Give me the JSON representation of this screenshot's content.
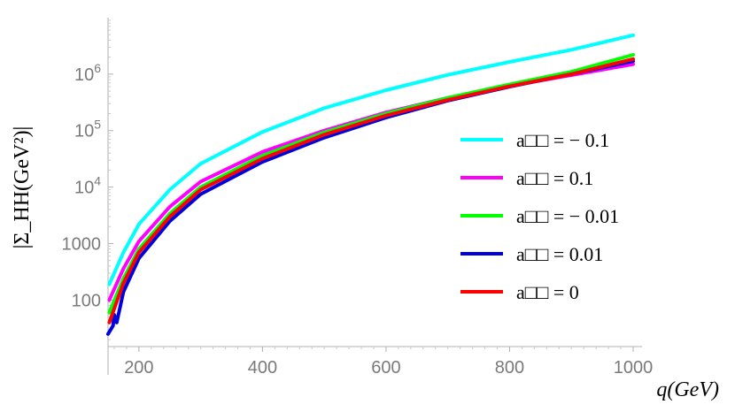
{
  "chart_data": {
    "type": "line",
    "xlabel": "q(GeV)",
    "ylabel": "|Σ_HH(GeV²)|",
    "xscale": "linear",
    "yscale": "log",
    "xlim": [
      150,
      1000
    ],
    "ylim": [
      15,
      10000000
    ],
    "x_ticks": [
      {
        "value": 200,
        "label": "200"
      },
      {
        "value": 400,
        "label": "400"
      },
      {
        "value": 600,
        "label": "600"
      },
      {
        "value": 800,
        "label": "800"
      },
      {
        "value": 1000,
        "label": "1000"
      }
    ],
    "y_ticks": [
      {
        "value": 100,
        "label": "100",
        "sup": ""
      },
      {
        "value": 1000,
        "label": "1000",
        "sup": ""
      },
      {
        "value": 10000,
        "label": "10",
        "sup": "4"
      },
      {
        "value": 100000,
        "label": "10",
        "sup": "5"
      },
      {
        "value": 1000000,
        "label": "10",
        "sup": "6"
      }
    ],
    "legend_position": "right",
    "series": [
      {
        "name": "a□□ = − 0.1",
        "color": "#00ffff",
        "x": [
          152,
          175,
          200,
          250,
          300,
          400,
          500,
          600,
          700,
          800,
          900,
          1000
        ],
        "y": [
          190,
          700,
          2200,
          9000,
          26000,
          95000,
          250000,
          520000,
          970000,
          1650000,
          2700000,
          4900000
        ]
      },
      {
        "name": "a□□ = 0.1",
        "color": "#ff00ff",
        "x": [
          152,
          175,
          200,
          250,
          300,
          400,
          500,
          600,
          700,
          800,
          900,
          1000
        ],
        "y": [
          100,
          360,
          1100,
          4500,
          12500,
          42000,
          100000,
          210000,
          380000,
          620000,
          960000,
          1500000
        ]
      },
      {
        "name": "a□□ = − 0.01",
        "color": "#00ff00",
        "x": [
          152,
          175,
          200,
          250,
          300,
          400,
          500,
          600,
          700,
          800,
          900,
          1000
        ],
        "y": [
          60,
          240,
          800,
          3400,
          10000,
          36000,
          93000,
          200000,
          380000,
          660000,
          1100000,
          2200000
        ]
      },
      {
        "name": "a□□ = 0.01",
        "color": "#0000dd",
        "x": [
          150,
          158,
          160,
          162,
          164,
          175,
          200,
          250,
          300,
          400,
          500,
          600,
          700,
          800,
          900,
          1000
        ],
        "y": [
          25,
          35,
          55,
          45,
          40,
          140,
          550,
          2500,
          7500,
          28000,
          75000,
          170000,
          340000,
          600000,
          1000000,
          1700000
        ]
      },
      {
        "name": "a□□ = 0",
        "color": "#ff0000",
        "x": [
          152,
          175,
          200,
          250,
          300,
          400,
          500,
          600,
          700,
          800,
          900,
          1000
        ],
        "y": [
          40,
          200,
          700,
          3000,
          9000,
          32000,
          85000,
          185000,
          350000,
          610000,
          1000000,
          1850000
        ]
      }
    ]
  }
}
